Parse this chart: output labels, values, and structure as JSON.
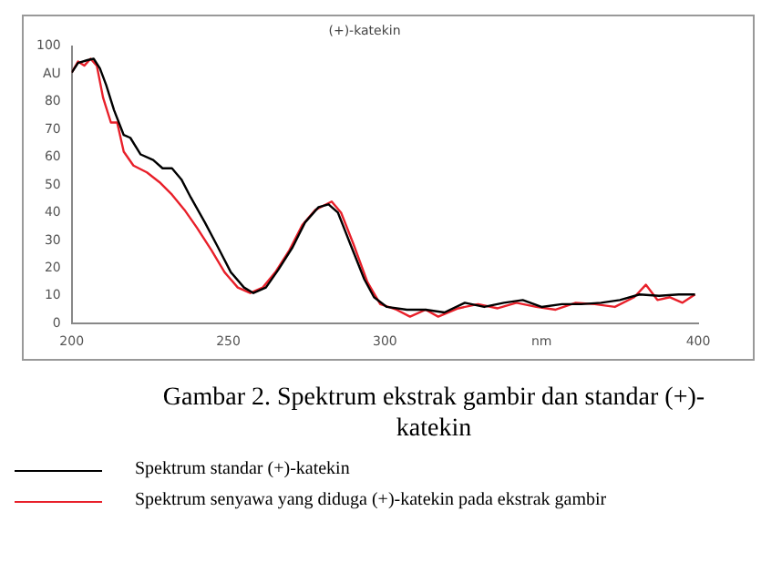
{
  "chart_data": {
    "type": "line",
    "title": "(+)-katekin",
    "x": [
      200,
      202,
      205,
      207,
      209,
      211,
      213.5,
      216.6,
      218.7,
      222,
      226,
      229,
      232,
      235,
      238,
      242.5,
      246.7,
      250.8,
      255,
      258,
      262,
      266,
      270.5,
      274.5,
      278.8,
      282,
      285,
      289,
      293.4,
      296.5,
      300.6,
      307,
      313,
      319,
      325.5,
      331.7,
      338,
      344,
      350,
      356.5,
      362.7,
      369,
      375,
      381.3,
      387.5,
      393.8,
      399
    ],
    "series": [
      {
        "name": "Spektrum standar (+)-katekin",
        "color": "#000000",
        "values": [
          90.5,
          94,
          95,
          95.5,
          92,
          86,
          77,
          68,
          67,
          61,
          59,
          56,
          56,
          52,
          45.5,
          36.5,
          27.5,
          18.5,
          13,
          11,
          13,
          19.5,
          27.5,
          36.5,
          42,
          43,
          40,
          28.5,
          16,
          9.5,
          6,
          5,
          5,
          4,
          7.5,
          6,
          7.5,
          8.5,
          6,
          7,
          7,
          7.5,
          8.5,
          10.5,
          10,
          10.5,
          10.5
        ]
      },
      {
        "name": "Spektrum senyawa yang diduga (+)-katekin pada ekstrak gambir",
        "color": "#e8202a",
        "x": [
          200,
          202,
          204,
          206,
          208,
          210,
          212.5,
          214.5,
          216.6,
          219.7,
          224,
          228,
          232,
          236,
          240,
          244.6,
          248.8,
          253,
          257,
          261,
          265,
          269.5,
          273.6,
          277.8,
          283,
          286,
          290,
          294.4,
          298.5,
          303.7,
          308,
          313,
          317,
          323.4,
          329.7,
          336,
          342,
          348.3,
          354.5,
          360.9,
          367,
          373.4,
          379.6,
          383.3,
          387,
          391,
          395,
          399
        ],
        "values": [
          90.5,
          94.5,
          93,
          95.5,
          93,
          81.5,
          72.5,
          72.5,
          62,
          57,
          54.5,
          51,
          46.5,
          41,
          34.5,
          26.5,
          18.5,
          13,
          11,
          13,
          18.5,
          26.5,
          35.5,
          41,
          44,
          40,
          28.5,
          15,
          7,
          5,
          2.5,
          5,
          2.5,
          5.5,
          7,
          5.5,
          7.5,
          6,
          5,
          7.5,
          7,
          6,
          9.5,
          14,
          8.5,
          9.5,
          7.5,
          10.5
        ]
      }
    ],
    "xlim": [
      200,
      400
    ],
    "xticks": [
      200,
      250,
      300,
      {
        "value": 350,
        "label": "nm"
      },
      400
    ],
    "ylim": [
      0,
      100
    ],
    "yticks": [
      0,
      10,
      20,
      30,
      40,
      50,
      60,
      70,
      80,
      {
        "value": 90,
        "label": "AU"
      },
      100
    ],
    "grid": false,
    "legend": "bottom",
    "marker": "none",
    "line_style": "solid",
    "annotations": [
      "Gambar 2. Spektrum ekstrak gambir dan standar (+)- katekin"
    ]
  }
}
